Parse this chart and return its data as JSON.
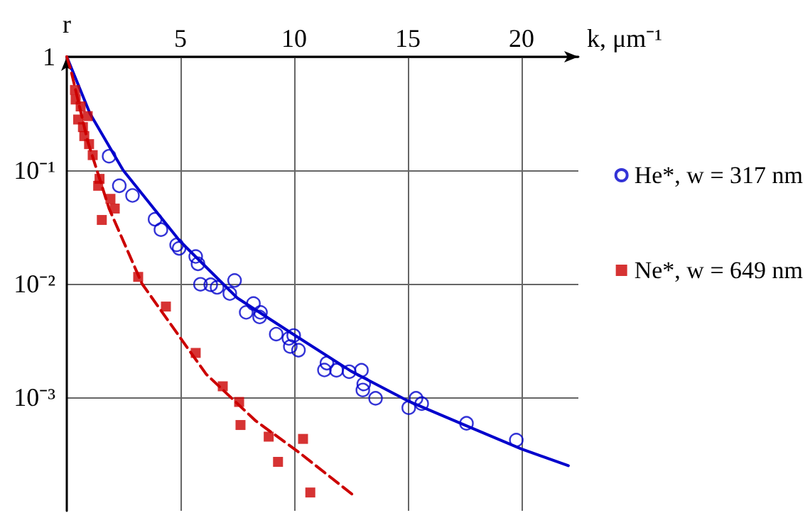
{
  "chart_data": {
    "type": "scatter",
    "xlabel": "k, μm⁻¹",
    "ylabel": "r",
    "xlim": [
      0,
      22.5
    ],
    "xticks": [
      5,
      10,
      15,
      20
    ],
    "ylim": [
      0.0001,
      1
    ],
    "yticks": [
      {
        "value": 1,
        "label": "1"
      },
      {
        "value": 0.1,
        "label": "10⁻¹"
      },
      {
        "value": 0.01,
        "label": "10⁻²"
      },
      {
        "value": 0.001,
        "label": "10⁻³"
      }
    ],
    "log": "y",
    "grid": true,
    "legend": "right",
    "series": [
      {
        "name": "He*, w = 317 nm",
        "type": "scatter",
        "marker": "circle",
        "color": "#0000cc",
        "x": [
          1.86,
          2.31,
          2.89,
          3.88,
          4.14,
          4.83,
          4.94,
          5.67,
          5.77,
          5.88,
          6.33,
          6.61,
          7.17,
          7.38,
          7.89,
          8.21,
          8.52,
          8.48,
          9.21,
          9.77,
          9.98,
          9.83,
          10.19,
          11.44,
          11.33,
          11.86,
          12.42,
          12.96,
          13.06,
          13.02,
          13.58,
          15.04,
          15.36,
          15.61,
          17.58,
          19.77
        ],
        "values": [
          0.133,
          0.073,
          0.06,
          0.037,
          0.03,
          0.022,
          0.0205,
          0.0174,
          0.015,
          0.0099,
          0.0098,
          0.0093,
          0.0082,
          0.0107,
          0.0056,
          0.0067,
          0.0056,
          0.0051,
          0.0036,
          0.0033,
          0.0035,
          0.0028,
          0.0026,
          0.002,
          0.00174,
          0.00173,
          0.00168,
          0.00173,
          0.00131,
          0.00116,
          0.00098,
          0.00081,
          0.00098,
          0.00088,
          0.00059,
          0.00042
        ]
      },
      {
        "name": "Ne*, w = 649 nm",
        "type": "scatter",
        "marker": "square",
        "color": "#cc0000",
        "x": [
          0.36,
          0.39,
          0.61,
          0.5,
          0.92,
          0.71,
          0.77,
          0.98,
          1.14,
          1.44,
          1.38,
          1.92,
          2.11,
          1.54,
          3.14,
          4.36,
          5.67,
          6.86,
          7.58,
          7.64,
          8.88,
          9.29,
          10.39,
          10.71
        ],
        "values": [
          0.51,
          0.42,
          0.365,
          0.28,
          0.3,
          0.24,
          0.2,
          0.17,
          0.136,
          0.084,
          0.073,
          0.056,
          0.046,
          0.0365,
          0.0115,
          0.0063,
          0.00246,
          0.00125,
          0.00091,
          0.00057,
          0.00045,
          0.00027,
          0.00043,
          0.000145
        ]
      },
      {
        "type": "line",
        "marker": "none",
        "line_style": "solid",
        "color": "#0000cc",
        "x": [
          0,
          1.02,
          2.48,
          4.98,
          7.5,
          10,
          12.5,
          15,
          17.5,
          20,
          22.06
        ],
        "values": [
          1,
          0.316,
          0.1,
          0.0237,
          0.0075,
          0.00355,
          0.0017,
          0.00093,
          0.00057,
          0.00035,
          0.00025
        ]
      },
      {
        "type": "line",
        "marker": "none",
        "line_style": "dashed",
        "color": "#cc0000",
        "x": [
          0,
          0.19,
          0.92,
          1.86,
          3.31,
          5.08,
          6.13,
          8.31,
          10.19,
          12.69
        ],
        "values": [
          1,
          0.75,
          0.18,
          0.046,
          0.01,
          0.00316,
          0.0016,
          0.00062,
          0.00033,
          0.000133
        ]
      }
    ]
  }
}
